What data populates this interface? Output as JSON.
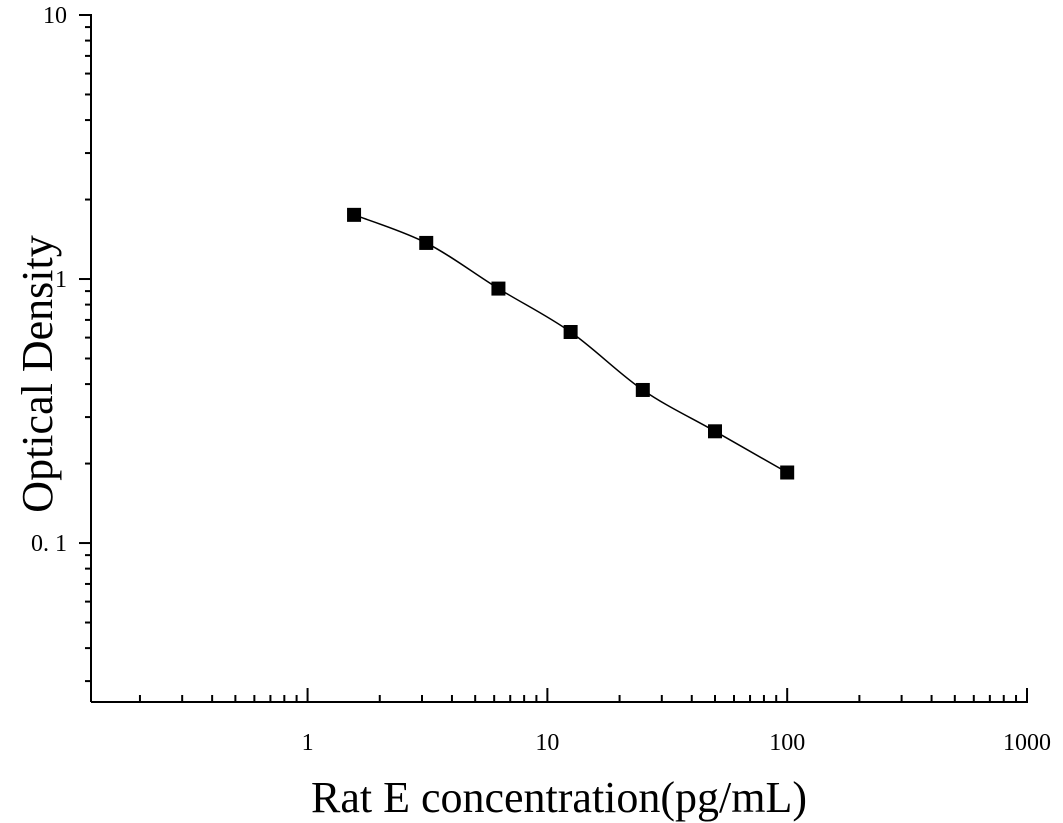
{
  "chart_data": {
    "type": "scatter",
    "xlabel": "Rat E concentration(pg/mL)",
    "ylabel": "Optical Density",
    "xscale": "log",
    "yscale": "log",
    "xlim": [
      0.125,
      1000
    ],
    "ylim": [
      0.025,
      10
    ],
    "x_tick_labels": [
      {
        "value": 1,
        "label": "1"
      },
      {
        "value": 10,
        "label": "10"
      },
      {
        "value": 100,
        "label": "100"
      },
      {
        "value": 1000,
        "label": "1000"
      }
    ],
    "y_tick_labels": [
      {
        "value": 0.1,
        "label": "0. 1"
      },
      {
        "value": 1,
        "label": "1"
      },
      {
        "value": 10,
        "label": "10"
      }
    ],
    "grid": false,
    "marker": "square",
    "series": [
      {
        "x": [
          1.5625,
          3.125,
          6.25,
          12.5,
          25,
          50,
          100
        ],
        "y": [
          1.75,
          1.37,
          0.92,
          0.63,
          0.38,
          0.265,
          0.185
        ]
      }
    ],
    "fit_curve": "smooth"
  }
}
